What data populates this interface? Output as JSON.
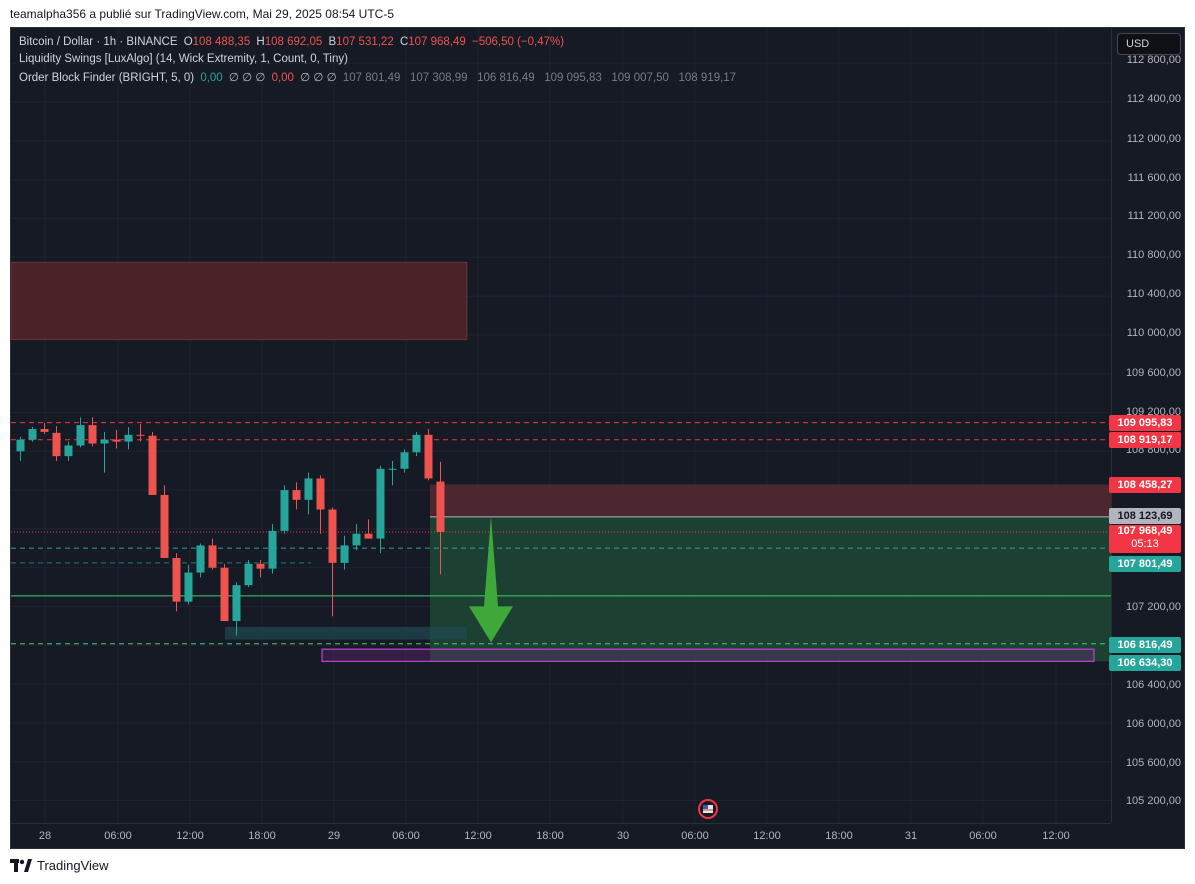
{
  "publisher": "teamalpha356 a publié sur TradingView.com, Mai 29, 2025 08:54 UTC-5",
  "currency": "USD",
  "footer_brand": "TradingView",
  "legend": {
    "symbol": "Bitcoin / Dollar · 1h · BINANCE",
    "o_label": "O",
    "o_value": "108 488,35",
    "h_label": "H",
    "h_value": "108 692,05",
    "b_label": "B",
    "b_value": "107 531,22",
    "c_label": "C",
    "c_value": "107 968,49",
    "change": "−506,50 (−0,47%)",
    "ind1": "Liquidity Swings [LuxAlgo] (14, Wick Extremity, 1, Count, 0, Tiny)",
    "ind2_name": "Order Block Finder (BRIGHT, 5, 0)",
    "ind2_v1": "0,00",
    "ind2_v2": "∅ ∅ ∅",
    "ind2_v3": "0,00",
    "ind2_v4": "∅ ∅ ∅",
    "ind2_levels": "107 801,49   107 308,99   106 816,49   109 095,83   109 007,50   108 919,17"
  },
  "y_ticks": [
    "112 800,00",
    "112 400,00",
    "112 000,00",
    "111 600,00",
    "111 200,00",
    "110 800,00",
    "110 400,00",
    "110 000,00",
    "109 600,00",
    "109 200,00",
    "108 800,00",
    "107 200,00",
    "106 400,00",
    "106 000,00",
    "105 600,00",
    "105 200,00"
  ],
  "x_ticks": [
    "28",
    "06:00",
    "12:00",
    "18:00",
    "29",
    "06:00",
    "12:00",
    "18:00",
    "30",
    "06:00",
    "12:00",
    "18:00",
    "31",
    "06:00",
    "12:00"
  ],
  "price_labels": {
    "l1": "109 095,83",
    "l2": "108 919,17",
    "l3": "108 458,27",
    "l4": "108 123,69",
    "l5": "107 968,49",
    "l5_timer": "05:13",
    "l6": "107 801,49",
    "l7": "106 816,49",
    "l8": "106 634,30"
  },
  "colors": {
    "up": "#26a69a",
    "down": "#ef5350",
    "bg": "#161a25",
    "zone_red": "#5b2a32",
    "zone_green": "#1f4d35"
  },
  "chart_data": {
    "type": "candlestick",
    "interval": "1h",
    "candles": [
      {
        "o": 108800,
        "h": 108950,
        "l": 108700,
        "c": 108920
      },
      {
        "o": 108920,
        "h": 109050,
        "l": 108900,
        "c": 109030
      },
      {
        "o": 109030,
        "h": 109090,
        "l": 108980,
        "c": 109000
      },
      {
        "o": 108990,
        "h": 109060,
        "l": 108700,
        "c": 108750
      },
      {
        "o": 108750,
        "h": 108900,
        "l": 108700,
        "c": 108860
      },
      {
        "o": 108860,
        "h": 109150,
        "l": 108840,
        "c": 109070
      },
      {
        "o": 109070,
        "h": 109150,
        "l": 108850,
        "c": 108880
      },
      {
        "o": 108880,
        "h": 109000,
        "l": 108580,
        "c": 108920
      },
      {
        "o": 108920,
        "h": 109020,
        "l": 108830,
        "c": 108900
      },
      {
        "o": 108900,
        "h": 109050,
        "l": 108820,
        "c": 108970
      },
      {
        "o": 108970,
        "h": 109080,
        "l": 108900,
        "c": 108960
      },
      {
        "o": 108960,
        "h": 109000,
        "l": 108350,
        "c": 108350
      },
      {
        "o": 108350,
        "h": 108450,
        "l": 107700,
        "c": 107700
      },
      {
        "o": 107700,
        "h": 107750,
        "l": 107150,
        "c": 107250
      },
      {
        "o": 107250,
        "h": 107630,
        "l": 107220,
        "c": 107550
      },
      {
        "o": 107550,
        "h": 107850,
        "l": 107500,
        "c": 107830
      },
      {
        "o": 107830,
        "h": 107900,
        "l": 107580,
        "c": 107600
      },
      {
        "o": 107600,
        "h": 107640,
        "l": 107050,
        "c": 107050
      },
      {
        "o": 107050,
        "h": 107450,
        "l": 106900,
        "c": 107420
      },
      {
        "o": 107420,
        "h": 107680,
        "l": 107400,
        "c": 107640
      },
      {
        "o": 107640,
        "h": 107680,
        "l": 107500,
        "c": 107590
      },
      {
        "o": 107590,
        "h": 108050,
        "l": 107540,
        "c": 107980
      },
      {
        "o": 107980,
        "h": 108450,
        "l": 107950,
        "c": 108400
      },
      {
        "o": 108400,
        "h": 108480,
        "l": 108200,
        "c": 108300
      },
      {
        "o": 108300,
        "h": 108580,
        "l": 108150,
        "c": 108520
      },
      {
        "o": 108520,
        "h": 108550,
        "l": 107950,
        "c": 108200
      },
      {
        "o": 108200,
        "h": 108220,
        "l": 107100,
        "c": 107650
      },
      {
        "o": 107650,
        "h": 107930,
        "l": 107580,
        "c": 107830
      },
      {
        "o": 107830,
        "h": 108050,
        "l": 107780,
        "c": 107950
      },
      {
        "o": 107950,
        "h": 108100,
        "l": 107900,
        "c": 107900
      },
      {
        "o": 107900,
        "h": 108650,
        "l": 107750,
        "c": 108620
      },
      {
        "o": 108620,
        "h": 108700,
        "l": 108450,
        "c": 108620
      },
      {
        "o": 108620,
        "h": 108820,
        "l": 108580,
        "c": 108790
      },
      {
        "o": 108790,
        "h": 109000,
        "l": 108750,
        "c": 108970
      },
      {
        "o": 108970,
        "h": 109030,
        "l": 108500,
        "c": 108520
      },
      {
        "o": 108488,
        "h": 108692,
        "l": 107531,
        "c": 107968
      }
    ],
    "zones": {
      "supply_top": 110750,
      "supply_bottom": 109950,
      "liquidity_red_top": 108458.27,
      "liquidity_red_bottom": 108123.69,
      "target_green_top": 108123.69,
      "target_green_bottom": 106634.3,
      "purple_top": 106760,
      "purple_bottom": 106634.3,
      "teal_top": 106990,
      "teal_bottom": 106860
    },
    "levels": {
      "dash_red_1": 109095.83,
      "dash_red_2": 108919.17,
      "close": 107968.49,
      "dash_green_1": 107801.49,
      "solid_green": 107308.99,
      "dash_green_2": 106816.49
    },
    "arrow": {
      "from": 108130,
      "to": 106830
    }
  }
}
